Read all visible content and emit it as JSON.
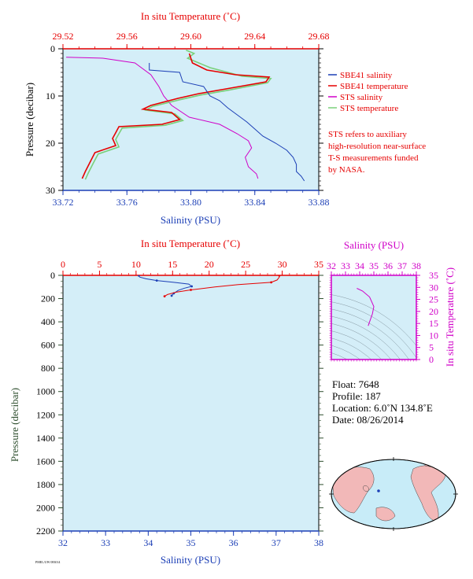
{
  "colors": {
    "plot_bg": "#d4eef8",
    "red": "#e60000",
    "blue": "#1c3fb6",
    "magenta": "#d000c8",
    "green": "#7ad07a",
    "pink": "#f4a0a0",
    "dark_green_axis": "#2f4f2f",
    "map_land": "#f2b8b8",
    "map_sea": "#c8ecf8"
  },
  "chart_data": [
    {
      "id": "upper",
      "type": "line",
      "top_axis_label": "In situ Temperature (˚C)",
      "top_ticks": [
        "29.52",
        "29.56",
        "29.60",
        "29.64",
        "29.68"
      ],
      "top_range": [
        29.52,
        29.68
      ],
      "bottom_axis_label": "Salinity (PSU)",
      "bottom_ticks": [
        "33.72",
        "33.76",
        "33.80",
        "33.84",
        "33.88"
      ],
      "bottom_range": [
        33.72,
        33.88
      ],
      "y_label": "Pressure (decibar)",
      "y_ticks": [
        "0",
        "10",
        "20",
        "30"
      ],
      "y_range": [
        0,
        30
      ],
      "legend": [
        {
          "name": "SBE41 salinity",
          "color": "#1c3fb6"
        },
        {
          "name": "SBE41 temperature",
          "color": "#e60000"
        },
        {
          "name": "STS salinity",
          "color": "#d000c8"
        },
        {
          "name": "STS temperature",
          "color": "#7ad07a"
        }
      ],
      "note": [
        "STS refers to auxiliary",
        "high-resolution near-surface",
        "T-S measurements funded",
        "by NASA."
      ],
      "series": [
        {
          "name": "SBE41 salinity",
          "axis": "salinity",
          "color": "#1c3fb6",
          "points": [
            [
              33.774,
              3.0
            ],
            [
              33.774,
              4.5
            ],
            [
              33.793,
              5.0
            ],
            [
              33.795,
              7.0
            ],
            [
              33.808,
              8.0
            ],
            [
              33.812,
              10.0
            ],
            [
              33.818,
              11.0
            ],
            [
              33.823,
              12.5
            ],
            [
              33.829,
              14.0
            ],
            [
              33.835,
              15.5
            ],
            [
              33.84,
              17.0
            ],
            [
              33.845,
              18.5
            ],
            [
              33.853,
              20.0
            ],
            [
              33.86,
              21.5
            ],
            [
              33.864,
              23.0
            ],
            [
              33.866,
              24.5
            ],
            [
              33.866,
              26.0
            ],
            [
              33.869,
              27.0
            ],
            [
              33.871,
              28.0
            ]
          ]
        },
        {
          "name": "SBE41 temperature",
          "axis": "temperature",
          "color": "#e60000",
          "points": [
            [
              29.599,
              1.0
            ],
            [
              29.601,
              3.0
            ],
            [
              29.61,
              4.5
            ],
            [
              29.628,
              5.5
            ],
            [
              29.649,
              6.0
            ],
            [
              29.647,
              7.0
            ],
            [
              29.622,
              8.5
            ],
            [
              29.605,
              9.5
            ],
            [
              29.592,
              10.5
            ],
            [
              29.575,
              12.0
            ],
            [
              29.57,
              12.8
            ],
            [
              29.588,
              13.5
            ],
            [
              29.593,
              15.0
            ],
            [
              29.582,
              16.0
            ],
            [
              29.555,
              16.5
            ],
            [
              29.553,
              17.8
            ],
            [
              29.551,
              19.0
            ],
            [
              29.553,
              20.5
            ],
            [
              29.54,
              22.0
            ],
            [
              29.537,
              24.0
            ],
            [
              29.534,
              26.0
            ],
            [
              29.532,
              27.5
            ]
          ]
        },
        {
          "name": "STS salinity",
          "axis": "salinity",
          "color": "#d000c8",
          "points": [
            [
              33.722,
              1.8
            ],
            [
              33.745,
              2.0
            ],
            [
              33.765,
              3.0
            ],
            [
              33.775,
              5.5
            ],
            [
              33.78,
              8.0
            ],
            [
              33.783,
              10.0
            ],
            [
              33.788,
              12.0
            ],
            [
              33.799,
              14.5
            ],
            [
              33.818,
              16.0
            ],
            [
              33.829,
              18.0
            ],
            [
              33.836,
              19.5
            ],
            [
              33.838,
              21.0
            ],
            [
              33.834,
              23.0
            ],
            [
              33.836,
              25.0
            ],
            [
              33.841,
              26.5
            ],
            [
              33.842,
              27.5
            ]
          ]
        },
        {
          "name": "STS temperature",
          "axis": "temperature",
          "color": "#7ad07a",
          "points": [
            [
              29.597,
              0.3
            ],
            [
              29.602,
              1.0
            ],
            [
              29.598,
              2.0
            ],
            [
              29.612,
              4.0
            ],
            [
              29.632,
              5.8
            ],
            [
              29.65,
              6.3
            ],
            [
              29.648,
              7.2
            ],
            [
              29.623,
              8.8
            ],
            [
              29.606,
              9.8
            ],
            [
              29.593,
              10.8
            ],
            [
              29.576,
              12.2
            ],
            [
              29.572,
              13.0
            ],
            [
              29.59,
              13.8
            ],
            [
              29.595,
              15.2
            ],
            [
              29.584,
              16.2
            ],
            [
              29.557,
              16.8
            ],
            [
              29.555,
              18.0
            ],
            [
              29.553,
              19.2
            ],
            [
              29.555,
              20.8
            ],
            [
              29.542,
              22.3
            ],
            [
              29.539,
              24.2
            ],
            [
              29.536,
              26.2
            ],
            [
              29.534,
              27.7
            ]
          ]
        }
      ]
    },
    {
      "id": "lower",
      "type": "line",
      "top_axis_label": "In situ Temperature (˚C)",
      "top_ticks": [
        "0",
        "5",
        "10",
        "15",
        "20",
        "25",
        "30",
        "35"
      ],
      "top_range": [
        0,
        35
      ],
      "bottom_axis_label": "Salinity (PSU)",
      "bottom_ticks": [
        "32",
        "33",
        "34",
        "35",
        "36",
        "37",
        "38"
      ],
      "bottom_range": [
        32,
        38
      ],
      "y_label": "Pressure (decibar)",
      "y_ticks": [
        "0",
        "200",
        "400",
        "600",
        "800",
        "1000",
        "1200",
        "1400",
        "1600",
        "1800",
        "2000",
        "2200"
      ],
      "y_range": [
        0,
        2200
      ],
      "series": [
        {
          "name": "Salinity",
          "axis": "salinity",
          "color": "#1c3fb6",
          "points": [
            [
              33.78,
              2
            ],
            [
              33.8,
              15
            ],
            [
              33.95,
              30
            ],
            [
              34.2,
              45
            ],
            [
              34.6,
              60
            ],
            [
              34.95,
              75
            ],
            [
              35.02,
              95
            ],
            [
              34.85,
              110
            ],
            [
              34.7,
              130
            ],
            [
              34.6,
              155
            ],
            [
              34.55,
              175
            ]
          ]
        },
        {
          "name": "Temperature",
          "axis": "temperature",
          "color": "#e60000",
          "points": [
            [
              29.6,
              2
            ],
            [
              29.6,
              15
            ],
            [
              29.3,
              40
            ],
            [
              28.5,
              60
            ],
            [
              24.0,
              80
            ],
            [
              20.8,
              100
            ],
            [
              17.5,
              125
            ],
            [
              15.5,
              145
            ],
            [
              14.3,
              165
            ],
            [
              13.9,
              180
            ]
          ]
        }
      ]
    },
    {
      "id": "ts_inset",
      "type": "scatter",
      "top_axis_label": "Salinity (PSU)",
      "top_ticks": [
        "32",
        "33",
        "34",
        "35",
        "36",
        "37",
        "38"
      ],
      "top_range": [
        32,
        38
      ],
      "right_axis_label": "In situ Temperature (˚C)",
      "right_ticks": [
        "0",
        "5",
        "10",
        "15",
        "20",
        "25",
        "30",
        "35"
      ],
      "right_range": [
        0,
        35
      ],
      "series": [
        {
          "name": "T-S",
          "color": "#d000c8",
          "points": [
            [
              33.8,
              29.6
            ],
            [
              34.2,
              28.5
            ],
            [
              34.7,
              26.0
            ],
            [
              35.0,
              22.0
            ],
            [
              34.9,
              19.0
            ],
            [
              34.75,
              16.5
            ],
            [
              34.6,
              14.0
            ]
          ]
        }
      ]
    }
  ],
  "info": {
    "float": "Float:  7648",
    "profile": "Profile:  187",
    "location": "Location:  6.0˚N  134.8˚E",
    "date": "Date:  08/26/2014"
  },
  "footer_small": "PMEL/UW  083014"
}
